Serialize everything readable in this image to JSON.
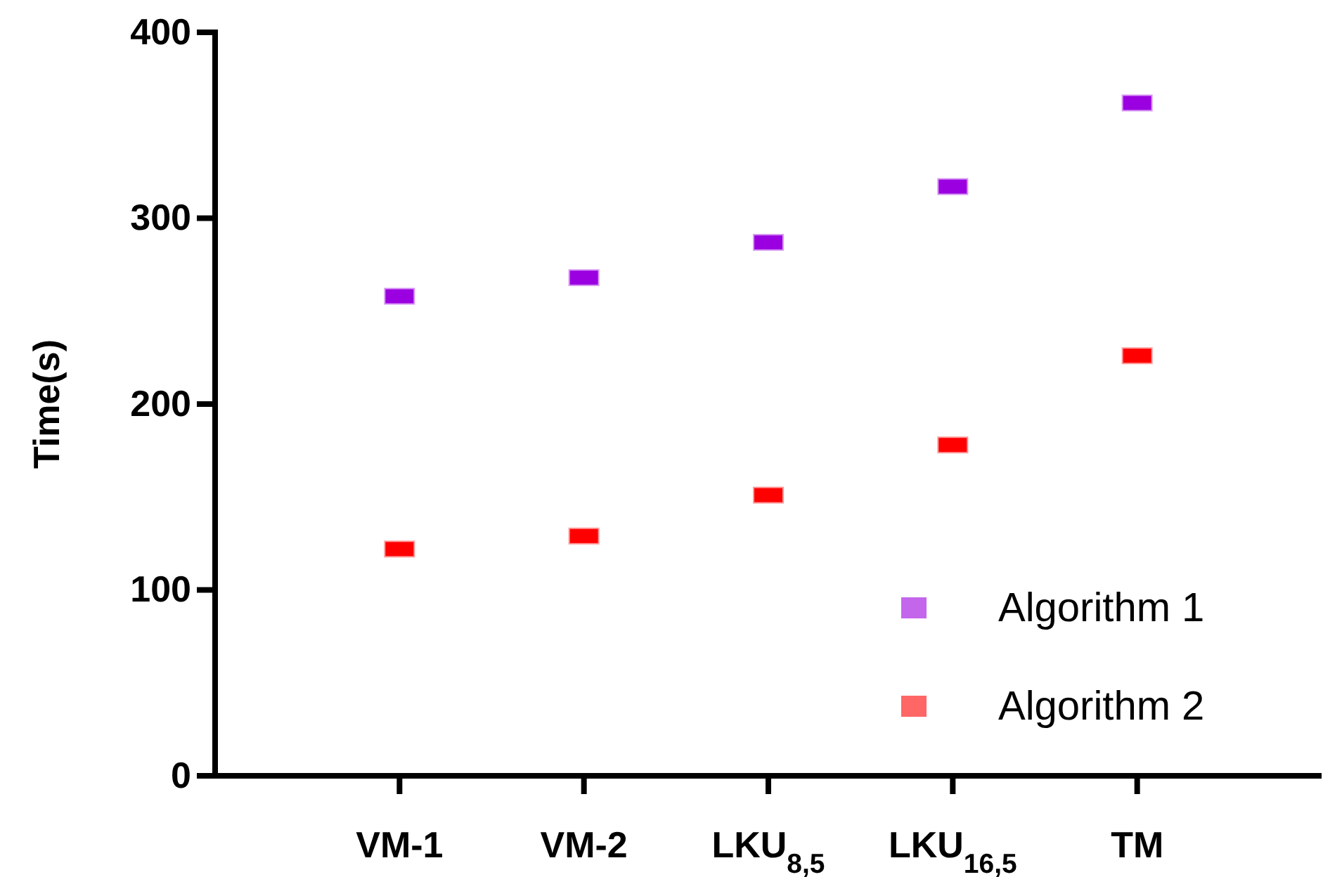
{
  "chart_data": {
    "type": "scatter",
    "ylabel": "Time(s)",
    "categories": [
      "VM-1",
      "VM-2",
      "LKU$_{8,5}$",
      "LKU$_{16,5}$",
      "TM"
    ],
    "series": [
      {
        "name": "Algorithm 1",
        "color": "#9b00e0",
        "values": [
          258,
          268,
          287,
          317,
          362
        ]
      },
      {
        "name": "Algorithm 2",
        "color": "#ff0000",
        "values": [
          122,
          129,
          151,
          178,
          226
        ]
      }
    ],
    "ylim": [
      0,
      400
    ],
    "yticks": [
      0,
      100,
      200,
      300,
      400
    ],
    "marker": "square",
    "grid": false,
    "legend": "bottom right"
  }
}
